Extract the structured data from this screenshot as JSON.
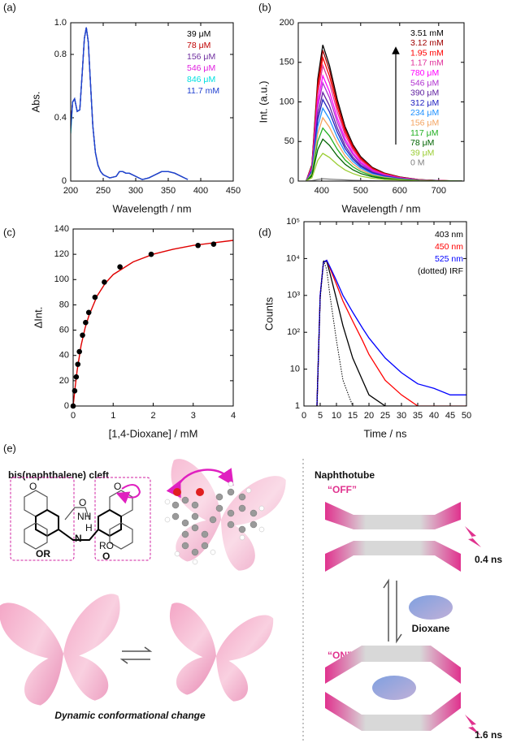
{
  "chart_data": [
    {
      "type": "line",
      "panel_label": "(a)",
      "x_label": "Wavelength / nm",
      "y_label": "Abs.",
      "x": [
        200,
        203,
        206,
        210,
        214,
        218,
        221,
        224,
        227,
        230,
        234,
        238,
        242,
        246,
        250,
        260,
        270,
        275,
        280,
        285,
        290,
        300,
        310,
        320,
        330,
        340,
        350,
        360,
        370,
        380
      ],
      "xlim": [
        200,
        450
      ],
      "xticks": [
        200,
        250,
        300,
        350,
        400,
        450
      ],
      "ylim": [
        0,
        1
      ],
      "yticks": [
        0,
        0.4,
        0.8,
        {
          "value": 1,
          "label": "1.0"
        }
      ],
      "series": [
        {
          "name": "39 μM",
          "color": "#000000",
          "values": [
            0.35,
            0.5,
            0.52,
            0.44,
            0.45,
            0.7,
            0.9,
            0.97,
            0.88,
            0.65,
            0.35,
            0.18,
            0.1,
            0.06,
            0.04,
            0.02,
            0.03,
            0.06,
            0.06,
            0.05,
            0.05,
            0.03,
            0.01,
            0.02,
            0.04,
            0.06,
            0.06,
            0.05,
            0.03,
            0.01
          ]
        },
        {
          "name": "78 μM",
          "color": "#c00000",
          "values": [
            0.34,
            0.5,
            0.52,
            0.44,
            0.45,
            0.7,
            0.9,
            0.97,
            0.88,
            0.65,
            0.35,
            0.18,
            0.1,
            0.06,
            0.04,
            0.02,
            0.03,
            0.06,
            0.06,
            0.05,
            0.05,
            0.03,
            0.01,
            0.02,
            0.04,
            0.06,
            0.06,
            0.05,
            0.03,
            0.01
          ]
        },
        {
          "name": "156 μM",
          "color": "#7030a0",
          "values": [
            0.33,
            0.5,
            0.52,
            0.44,
            0.45,
            0.7,
            0.9,
            0.97,
            0.88,
            0.65,
            0.35,
            0.18,
            0.1,
            0.06,
            0.04,
            0.02,
            0.03,
            0.06,
            0.06,
            0.05,
            0.05,
            0.03,
            0.01,
            0.02,
            0.04,
            0.06,
            0.06,
            0.05,
            0.03,
            0.01
          ]
        },
        {
          "name": "546 μM",
          "color": "#e020e0",
          "values": [
            0.32,
            0.5,
            0.52,
            0.44,
            0.45,
            0.7,
            0.9,
            0.97,
            0.88,
            0.65,
            0.35,
            0.18,
            0.1,
            0.06,
            0.04,
            0.02,
            0.03,
            0.06,
            0.06,
            0.05,
            0.05,
            0.03,
            0.01,
            0.02,
            0.04,
            0.06,
            0.06,
            0.05,
            0.03,
            0.01
          ]
        },
        {
          "name": "846 μM",
          "color": "#00e0e0",
          "values": [
            0.3,
            0.5,
            0.52,
            0.44,
            0.45,
            0.7,
            0.9,
            0.97,
            0.88,
            0.65,
            0.35,
            0.18,
            0.1,
            0.06,
            0.04,
            0.02,
            0.03,
            0.06,
            0.06,
            0.05,
            0.05,
            0.03,
            0.01,
            0.02,
            0.04,
            0.06,
            0.06,
            0.05,
            0.03,
            0.01
          ]
        },
        {
          "name": "11.7 mM",
          "color": "#1f3fd0",
          "values": [
            0.33,
            0.5,
            0.52,
            0.44,
            0.45,
            0.7,
            0.9,
            0.97,
            0.88,
            0.65,
            0.35,
            0.18,
            0.1,
            0.06,
            0.04,
            0.02,
            0.03,
            0.06,
            0.06,
            0.05,
            0.05,
            0.03,
            0.01,
            0.02,
            0.04,
            0.06,
            0.06,
            0.05,
            0.03,
            0.01
          ]
        }
      ]
    },
    {
      "type": "line",
      "panel_label": "(b)",
      "x_label": "Wavelength / nm",
      "y_label": "Int. (a.u.)",
      "x": [
        360,
        375,
        390,
        403,
        420,
        440,
        460,
        480,
        500,
        530,
        560,
        600,
        650,
        700,
        760
      ],
      "xlim": [
        340,
        765
      ],
      "xticks": [
        400,
        500,
        600,
        700
      ],
      "ylim": [
        0,
        200
      ],
      "yticks": [
        0,
        50,
        100,
        150,
        200
      ],
      "series": [
        {
          "name": "3.51 mM",
          "color": "#000000",
          "values": [
            0,
            20.6,
            129,
            172,
            146.2,
            103.2,
            68.8,
            46.4,
            31,
            17.2,
            10.3,
            5.2,
            1.7,
            0.7,
            0
          ]
        },
        {
          "name": "3.12 mM",
          "color": "#a00000",
          "values": [
            0,
            19.8,
            123.8,
            165,
            140.3,
            99,
            66,
            44.6,
            29.7,
            16.5,
            9.9,
            5,
            1.7,
            0.7,
            0
          ]
        },
        {
          "name": "1.95 mM",
          "color": "#ff0000",
          "values": [
            0,
            18.7,
            117,
            156,
            132.6,
            93.6,
            62.4,
            42.1,
            28.1,
            15.6,
            9.4,
            4.7,
            1.6,
            0.6,
            0
          ]
        },
        {
          "name": "1.17 mM",
          "color": "#e0309a",
          "values": [
            0,
            17.5,
            109.5,
            146,
            124.1,
            87.6,
            58.4,
            39.4,
            26.3,
            14.6,
            8.8,
            4.4,
            1.5,
            0.6,
            0
          ]
        },
        {
          "name": "780 μM",
          "color": "#ff00ff",
          "values": [
            0,
            16,
            99.8,
            133,
            113,
            79.8,
            53.2,
            35.9,
            23.9,
            13.3,
            8,
            4,
            1.3,
            0.5,
            0
          ]
        },
        {
          "name": "546 μM",
          "color": "#b030d0",
          "values": [
            0,
            14.9,
            93,
            124,
            105.4,
            74.4,
            49.6,
            33.5,
            22.3,
            12.4,
            7.4,
            3.7,
            1.2,
            0.5,
            0
          ]
        },
        {
          "name": "390 μM",
          "color": "#6020a0",
          "values": [
            0,
            13.4,
            84,
            112,
            95.2,
            67.2,
            44.8,
            30.2,
            20.2,
            11.2,
            6.7,
            3.4,
            1.1,
            0.4,
            0
          ]
        },
        {
          "name": "312 μM",
          "color": "#2020c0",
          "values": [
            0,
            12.4,
            77.3,
            103,
            87.6,
            61.8,
            41.2,
            27.8,
            18.5,
            10.3,
            6.2,
            3.1,
            1,
            0.4,
            0
          ]
        },
        {
          "name": "234 μM",
          "color": "#1e90ff",
          "values": [
            0,
            11,
            69,
            92,
            78.2,
            55.2,
            36.8,
            24.8,
            16.6,
            9.2,
            5.5,
            2.8,
            0.9,
            0.4,
            0
          ]
        },
        {
          "name": "156 μM",
          "color": "#f4a460",
          "values": [
            0,
            9.6,
            60,
            80,
            68,
            48,
            32,
            21.6,
            14.4,
            8,
            4.8,
            2.4,
            0.8,
            0.3,
            0
          ]
        },
        {
          "name": "117 μM",
          "color": "#22b022",
          "values": [
            0,
            8,
            50.3,
            67,
            57,
            40.2,
            26.8,
            18.1,
            12.1,
            6.7,
            4,
            2,
            0.7,
            0.3,
            0
          ]
        },
        {
          "name": "78 μM",
          "color": "#006400",
          "values": [
            0,
            6.4,
            39.8,
            53,
            45.1,
            31.8,
            21.2,
            14.3,
            9.5,
            5.3,
            3.2,
            1.6,
            0.5,
            0.2,
            0
          ]
        },
        {
          "name": "39 μM",
          "color": "#9acd32",
          "values": [
            0,
            4.2,
            26.3,
            35,
            29.8,
            21,
            14,
            9.5,
            6.3,
            3.5,
            2.1,
            1.1,
            0.4,
            0.1,
            0
          ]
        },
        {
          "name": "0 M",
          "color": "#808080",
          "values": [
            0,
            0.5,
            2,
            3,
            2.5,
            2,
            1.5,
            1,
            0.7,
            0.4,
            0.2,
            0.1,
            0,
            0,
            0
          ]
        }
      ]
    },
    {
      "type": "scatter",
      "panel_label": "(c)",
      "x_label": "[1,4-Dioxane] / mM",
      "y_label": "ΔInt.",
      "xlim": [
        0,
        4
      ],
      "xticks": [
        0,
        1,
        2,
        3,
        4
      ],
      "ylim": [
        0,
        140
      ],
      "yticks": [
        0,
        20,
        40,
        60,
        80,
        100,
        120,
        140
      ],
      "points": {
        "color": "#000000",
        "x": [
          0,
          0.039,
          0.078,
          0.117,
          0.156,
          0.234,
          0.312,
          0.39,
          0.546,
          0.78,
          1.17,
          1.95,
          3.12,
          3.51
        ],
        "y": [
          0,
          12,
          23,
          33,
          43,
          56,
          66,
          74,
          86,
          98,
          110,
          120,
          127,
          128
        ]
      },
      "fit": {
        "color": "#e00000",
        "x": [
          0,
          0.05,
          0.1,
          0.2,
          0.3,
          0.4,
          0.6,
          0.8,
          1,
          1.5,
          2,
          2.5,
          3,
          3.5,
          4
        ],
        "y": [
          0,
          15,
          28,
          48,
          62,
          72,
          87,
          97,
          104,
          114,
          120,
          124,
          127,
          129,
          131
        ]
      }
    },
    {
      "type": "line",
      "panel_label": "(d)",
      "x_label": "Time / ns",
      "y_label": "Counts",
      "log_y": true,
      "x": [
        4,
        5,
        6,
        7,
        8,
        10,
        12,
        15,
        18,
        20,
        25,
        30,
        35,
        40,
        45,
        50
      ],
      "xlim": [
        0,
        50
      ],
      "xticks": [
        0,
        5,
        10,
        15,
        20,
        25,
        30,
        35,
        40,
        45,
        50
      ],
      "ylim": [
        1,
        100000
      ],
      "yticks": [
        1,
        10,
        {
          "value": 100,
          "label": "10²"
        },
        {
          "value": 1000,
          "label": "10³"
        },
        {
          "value": 10000,
          "label": "10⁴"
        },
        {
          "value": 100000,
          "label": "10⁵"
        }
      ],
      "series": [
        {
          "name": "403 nm",
          "color": "#000000",
          "values": [
            1,
            1000,
            8000,
            8500,
            4000,
            800,
            150,
            20,
            5,
            2,
            1,
            1,
            null,
            null,
            null,
            null
          ]
        },
        {
          "name": "450 nm",
          "color": "#ff0000",
          "values": [
            1,
            1000,
            8000,
            9000,
            5500,
            2000,
            700,
            200,
            60,
            25,
            5,
            2,
            1,
            1,
            1,
            1
          ]
        },
        {
          "name": "525 nm",
          "color": "#0000ff",
          "values": [
            1,
            1000,
            8000,
            9000,
            6000,
            2500,
            1000,
            350,
            130,
            70,
            20,
            8,
            4,
            3,
            2,
            2
          ]
        },
        {
          "name": "(dotted) IRF",
          "color": "#000000",
          "style": "dotted",
          "values": [
            1,
            800,
            9000,
            5000,
            1000,
            60,
            5,
            1,
            null,
            null,
            null,
            null,
            null,
            null,
            null,
            null
          ]
        }
      ]
    }
  ],
  "diagram": {
    "panel_label": "(e)",
    "left_title": "bis(naphthalene) cleft",
    "right_title": "Naphthotube",
    "off_label": "“OFF”",
    "on_label": "“ON”",
    "off_lifetime": "0.4 ns",
    "on_lifetime": "1.6 ns",
    "guest": "Dioxane",
    "caption": "Dynamic conformational change",
    "structure_labels": [
      "O",
      "O",
      "O",
      "NH",
      "H",
      "N",
      "OR",
      "RO",
      "O"
    ]
  }
}
